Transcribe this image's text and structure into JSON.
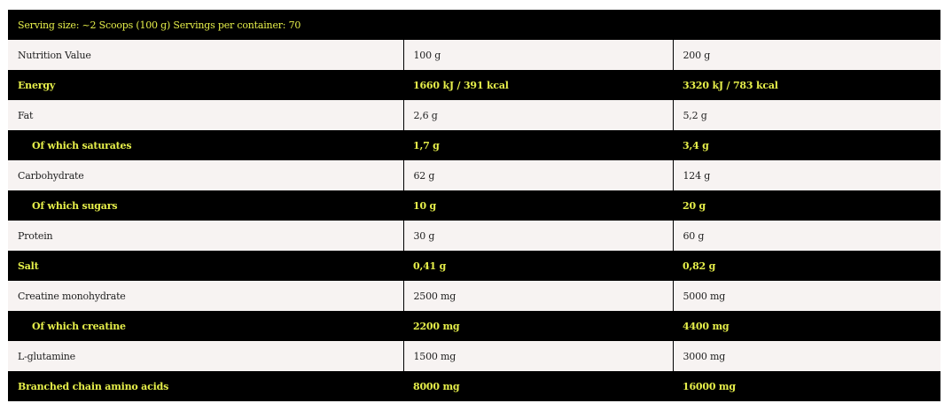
{
  "header": "Serving size: ~2 Scoops (100 g) Servings per container: 70",
  "rows": [
    {
      "name": "Nutrition Value",
      "v100": "100 g",
      "v200": "200 g"
    },
    {
      "name": "Energy",
      "v100": "1660 kJ / 391 kcal",
      "v200": "3320 kJ / 783 kcal"
    },
    {
      "name": "Fat",
      "v100": "2,6 g",
      "v200": "5,2 g"
    },
    {
      "name": "Of which saturates",
      "v100": "1,7 g",
      "v200": "3,4 g",
      "indent": true
    },
    {
      "name": "Carbohydrate",
      "v100": "62 g",
      "v200": "124 g"
    },
    {
      "name": "Of which sugars",
      "v100": "10 g",
      "v200": "20 g",
      "indent": true
    },
    {
      "name": "Protein",
      "v100": "30 g",
      "v200": "60 g"
    },
    {
      "name": "Salt",
      "v100": "0,41 g",
      "v200": "0,82 g"
    },
    {
      "name": "Creatine monohydrate",
      "v100": "2500 mg",
      "v200": "5000 mg"
    },
    {
      "name": "Of which creatine",
      "v100": "2200 mg",
      "v200": "4400 mg",
      "indent": true
    },
    {
      "name": "L-glutamine",
      "v100": "1500 mg",
      "v200": "3000 mg"
    },
    {
      "name": "Branched chain amino acids",
      "v100": "8000 mg",
      "v200": "16000 mg"
    }
  ],
  "colors": {
    "dark_row_bg": "#000000",
    "dark_row_text": "#e6ef4a",
    "light_row_bg": "#f7f3f2"
  }
}
